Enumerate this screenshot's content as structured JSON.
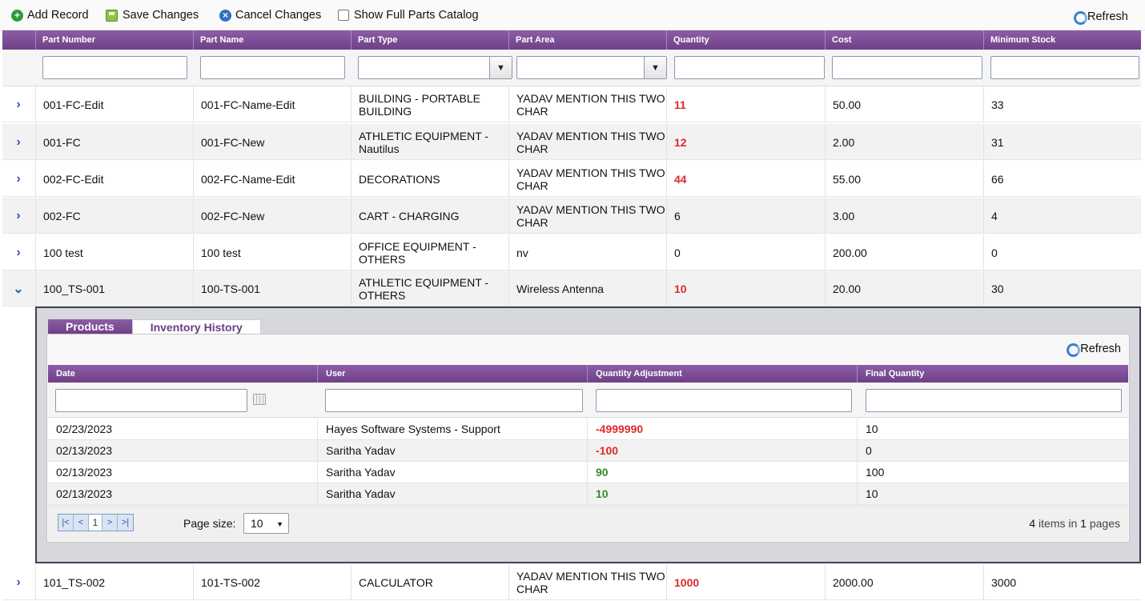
{
  "toolbar": {
    "add_label": "Add Record",
    "save_label": "Save Changes",
    "cancel_label": "Cancel Changes",
    "catalog_label": "Show Full Parts Catalog",
    "refresh_label": "Refresh"
  },
  "columns": [
    "Part Number",
    "Part Name",
    "Part Type",
    "Part Area",
    "Quantity",
    "Cost",
    "Minimum Stock"
  ],
  "rows": [
    {
      "part_number": "001-FC-Edit",
      "part_name": "001-FC-Name-Edit",
      "part_type": "BUILDING - PORTABLE BUILDING",
      "part_area": "YADAV MENTION THIS TWO CHAR",
      "quantity": "11",
      "cost": "50.00",
      "min_stock": "33",
      "expander": "›"
    },
    {
      "part_number": "001-FC",
      "part_name": "001-FC-New",
      "part_type": "ATHLETIC EQUIPMENT - Nautilus",
      "part_area": "YADAV MENTION THIS TWO CHAR",
      "quantity": "12",
      "cost": "2.00",
      "min_stock": "31",
      "expander": "›"
    },
    {
      "part_number": "002-FC-Edit",
      "part_name": "002-FC-Name-Edit",
      "part_type": "DECORATIONS",
      "part_area": "YADAV MENTION THIS TWO CHAR",
      "quantity": "44",
      "cost": "55.00",
      "min_stock": "66",
      "expander": "›"
    },
    {
      "part_number": "002-FC",
      "part_name": "002-FC-New",
      "part_type": "CART - CHARGING",
      "part_area": "YADAV MENTION THIS TWO CHAR",
      "quantity": "6",
      "cost": "3.00",
      "min_stock": "4",
      "expander": "›"
    },
    {
      "part_number": "100 test",
      "part_name": "100 test",
      "part_type": "OFFICE EQUIPMENT - OTHERS",
      "part_area": "nv",
      "quantity": "0",
      "cost": "200.00",
      "min_stock": "0",
      "expander": "›"
    },
    {
      "part_number": "100_TS-001",
      "part_name": "100-TS-001",
      "part_type": "ATHLETIC EQUIPMENT - OTHERS",
      "part_area": "Wireless Antenna",
      "quantity": "10",
      "cost": "20.00",
      "min_stock": "30",
      "expander": "⌄"
    },
    {
      "part_number": "101_TS-002",
      "part_name": "101-TS-002",
      "part_type": "CALCULATOR",
      "part_area": "YADAV MENTION THIS TWO CHAR",
      "quantity": "1000",
      "cost": "2000.00",
      "min_stock": "3000",
      "expander": "›"
    }
  ],
  "detail": {
    "tabs": [
      "Products",
      "Inventory History"
    ],
    "refresh_label": "Refresh",
    "columns": [
      "Date",
      "User",
      "Quantity Adjustment",
      "Final Quantity"
    ],
    "history": [
      {
        "date": "02/23/2023",
        "user": "Hayes Software Systems - Support",
        "adjustment": "-4999990",
        "final": "10"
      },
      {
        "date": "02/13/2023",
        "user": "Saritha Yadav",
        "adjustment": "-100",
        "final": "0"
      },
      {
        "date": "02/13/2023",
        "user": "Saritha Yadav",
        "adjustment": "90",
        "final": "100"
      },
      {
        "date": "02/13/2023",
        "user": "Saritha Yadav",
        "adjustment": "10",
        "final": "10"
      }
    ],
    "pager": {
      "buttons": [
        "first",
        "prev",
        "next",
        "last"
      ],
      "current_page": "1",
      "page_size_label": "Page size:",
      "page_size": "10",
      "items_count": "4",
      "items_mid": "items in",
      "pages_count": "1",
      "pages_word": "pages"
    }
  },
  "colors": {
    "header": "#7a4a94",
    "negative": "#e02a2a",
    "positive": "#2e8b2e"
  }
}
